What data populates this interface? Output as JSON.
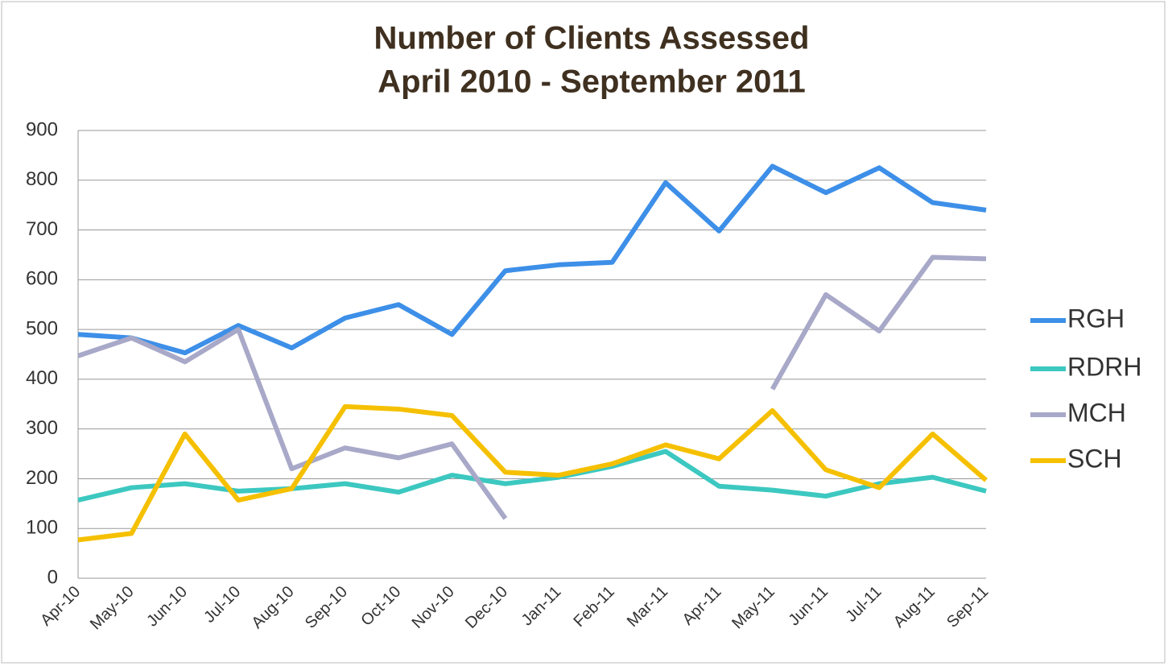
{
  "chart_data": {
    "type": "line",
    "title": [
      "Number of Clients Assessed",
      "April 2010 - September 2011"
    ],
    "categories": [
      "Apr-10",
      "May-10",
      "Jun-10",
      "Jul-10",
      "Aug-10",
      "Sep-10",
      "Oct-10",
      "Nov-10",
      "Dec-10",
      "Jan-11",
      "Feb-11",
      "Mar-11",
      "Apr-11",
      "May-11",
      "Jun-11",
      "Jul-11",
      "Aug-11",
      "Sep-11"
    ],
    "series": [
      {
        "name": "RGH",
        "color": "#3d8fe8",
        "values": [
          490,
          483,
          453,
          508,
          463,
          523,
          550,
          490,
          618,
          630,
          635,
          795,
          698,
          828,
          775,
          825,
          755,
          740
        ]
      },
      {
        "name": "RDRH",
        "color": "#3cc8c0",
        "values": [
          157,
          182,
          190,
          175,
          180,
          190,
          173,
          207,
          190,
          203,
          225,
          255,
          185,
          177,
          165,
          190,
          203,
          175
        ]
      },
      {
        "name": "MCH",
        "color": "#a8a8c8",
        "values": [
          447,
          483,
          435,
          500,
          220,
          262,
          242,
          270,
          120,
          null,
          null,
          null,
          null,
          380,
          570,
          497,
          645,
          642
        ]
      },
      {
        "name": "SCH",
        "color": "#f5c000",
        "values": [
          77,
          90,
          290,
          157,
          180,
          345,
          340,
          327,
          213,
          207,
          230,
          268,
          240,
          337,
          218,
          182,
          290,
          197
        ]
      }
    ],
    "ylim": [
      0,
      900
    ],
    "yticks": [
      0,
      100,
      200,
      300,
      400,
      500,
      600,
      700,
      800,
      900
    ],
    "grid": true,
    "legend": "right"
  }
}
